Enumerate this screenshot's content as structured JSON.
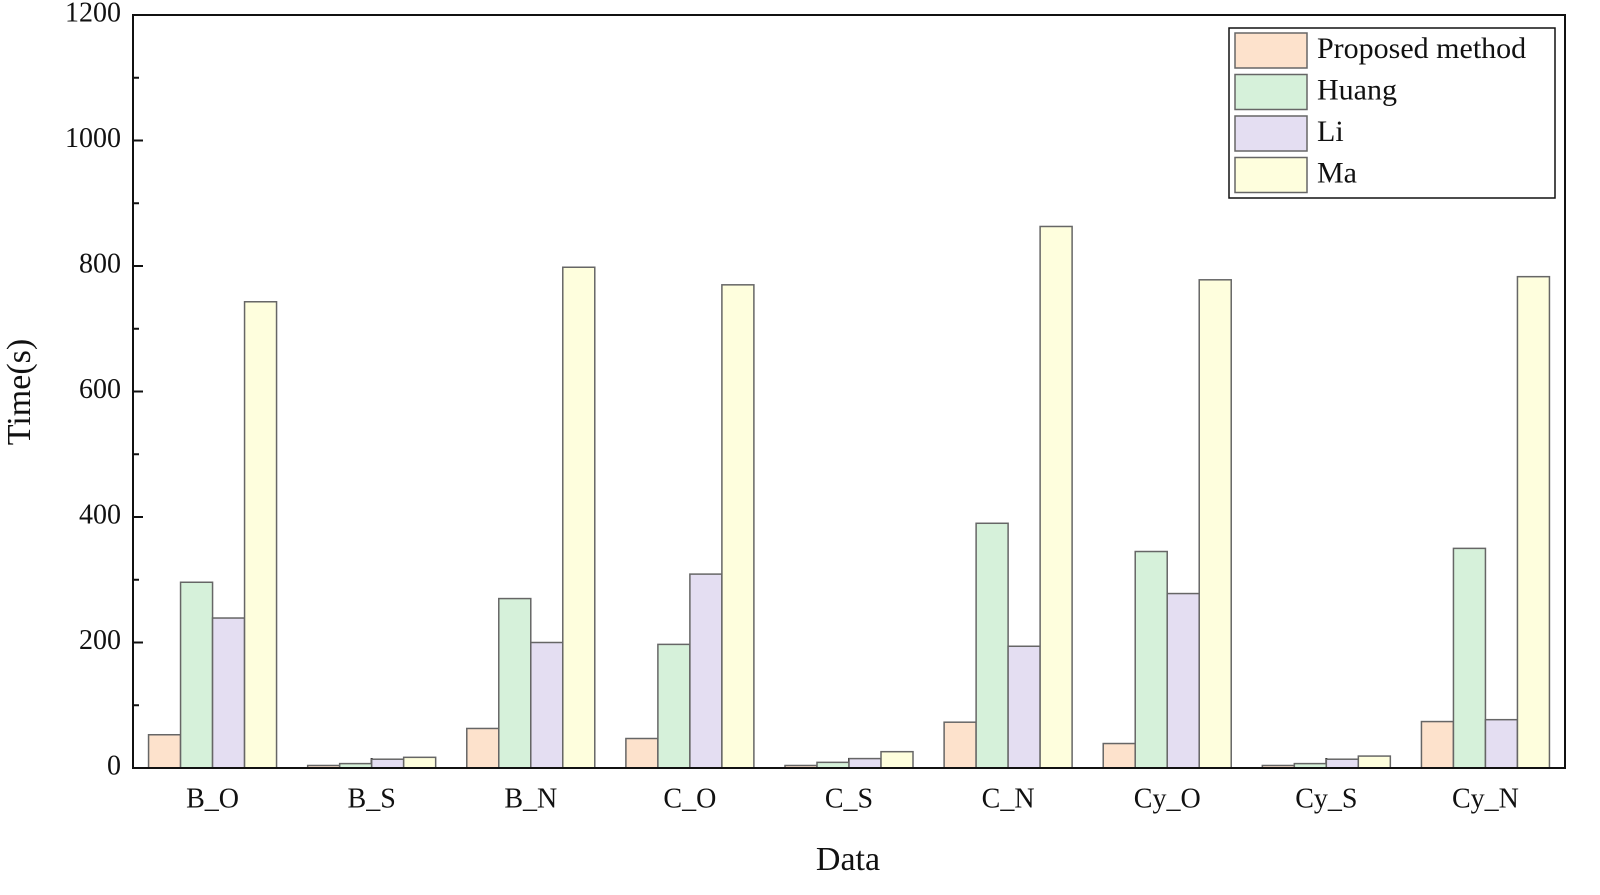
{
  "chart_data": {
    "type": "bar",
    "x_label": "Data",
    "y_label": "Time(s)",
    "categories": [
      "B_O",
      "B_S",
      "B_N",
      "C_O",
      "C_S",
      "C_N",
      "Cy_O",
      "Cy_S",
      "Cy_N"
    ],
    "series": [
      {
        "name": "Proposed method",
        "color": "#fde2cc",
        "values": [
          53,
          4,
          63,
          47,
          4,
          73,
          39,
          4,
          74
        ]
      },
      {
        "name": "Huang",
        "color": "#d6f1da",
        "values": [
          296,
          7,
          270,
          197,
          9,
          390,
          345,
          7,
          350
        ]
      },
      {
        "name": "Li",
        "color": "#e4def2",
        "values": [
          239,
          14,
          200,
          309,
          15,
          194,
          278,
          14,
          77
        ]
      },
      {
        "name": "Ma",
        "color": "#fefedd",
        "values": [
          743,
          17,
          798,
          770,
          26,
          863,
          778,
          19,
          783
        ]
      }
    ],
    "ylim": [
      0,
      1200
    ],
    "yticks": [
      0,
      200,
      400,
      600,
      800,
      1000,
      1200
    ],
    "legend": "top-right"
  }
}
